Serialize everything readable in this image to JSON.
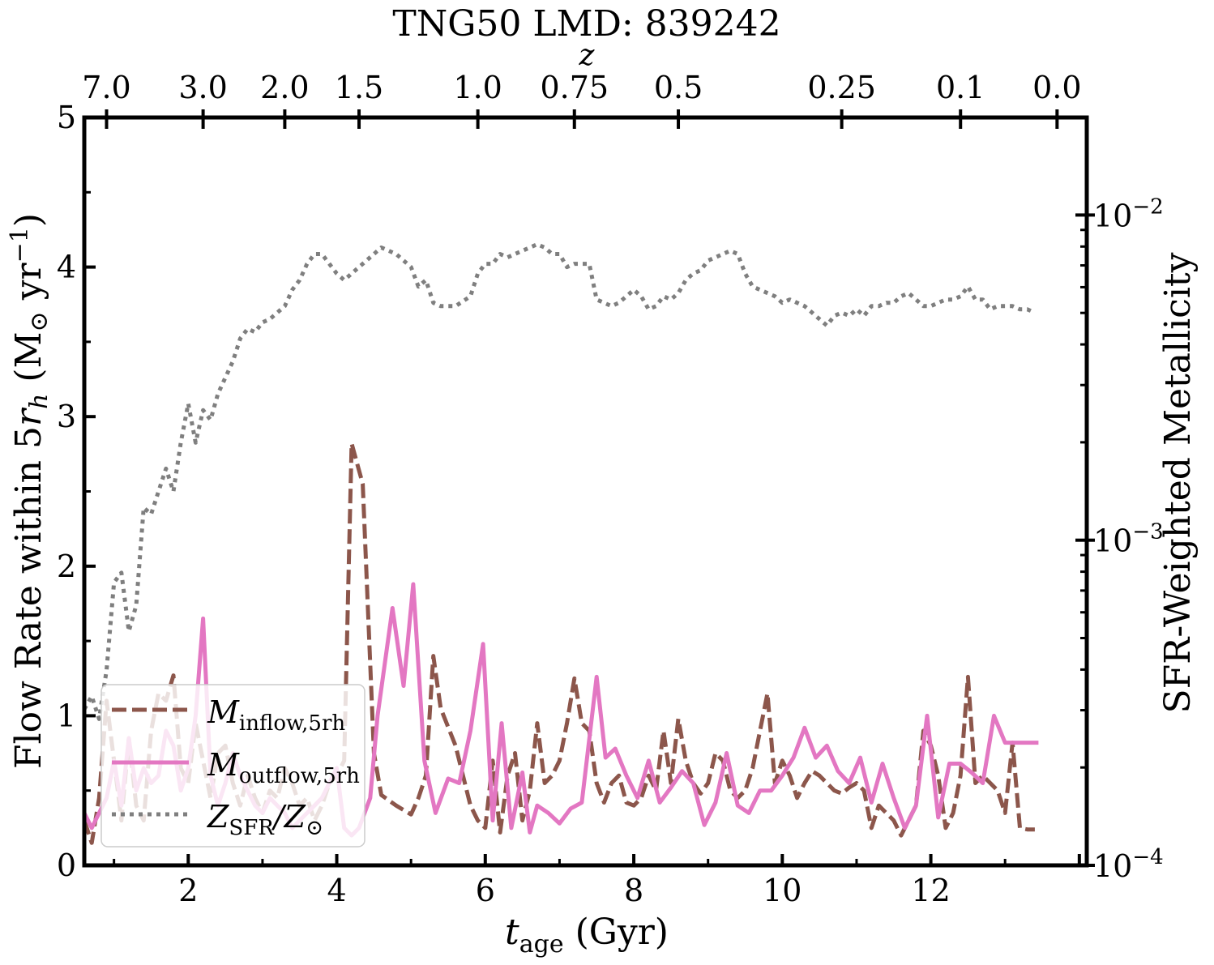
{
  "chart_data": {
    "type": "line",
    "title": "TNG50 LMD: 839242",
    "xlabel": "t_age (Gyr)",
    "xlabel_main": "t",
    "xlabel_sub": "age",
    "xlabel_unit": " (Gyr)",
    "ylabel": "Flow Rate within 5r_h (M☉ yr⁻¹)",
    "ylabel_parts": {
      "pre": "Flow Rate within 5",
      "r": "r",
      "h": "h",
      "unit": " (M",
      "sun": "⊙",
      "yr": " yr",
      "exp": "−1",
      "close": ")"
    },
    "y2label": "SFR-Weighted Metallicity",
    "top_xlabel": "z",
    "xlim": [
      0.6,
      14.1
    ],
    "ylim": [
      0,
      5
    ],
    "y2lim_log10": [
      -4,
      -1.7
    ],
    "xticks": [
      2,
      4,
      6,
      8,
      10,
      12
    ],
    "xtick_labels": [
      "2",
      "4",
      "6",
      "8",
      "10",
      "12"
    ],
    "yticks": [
      0,
      1,
      2,
      3,
      4,
      5
    ],
    "ytick_labels": [
      "0",
      "1",
      "2",
      "3",
      "4",
      "5"
    ],
    "y2ticks": [
      {
        "exp": -4,
        "base": "10",
        "power": "−4"
      },
      {
        "exp": -3,
        "base": "10",
        "power": "−3"
      },
      {
        "exp": -2,
        "base": "10",
        "power": "−2"
      }
    ],
    "top_ticks": [
      {
        "t": 0.9,
        "label": "7.0"
      },
      {
        "t": 2.2,
        "label": "3.0"
      },
      {
        "t": 3.3,
        "label": "2.0"
      },
      {
        "t": 4.3,
        "label": "1.5"
      },
      {
        "t": 5.9,
        "label": "1.0"
      },
      {
        "t": 7.2,
        "label": "0.75"
      },
      {
        "t": 8.6,
        "label": "0.5"
      },
      {
        "t": 10.8,
        "label": "0.25"
      },
      {
        "t": 12.4,
        "label": "0.1"
      },
      {
        "t": 13.7,
        "label": "0.0"
      }
    ],
    "legend": {
      "position": "lower-left",
      "entries": [
        {
          "main": "M",
          "sub": "inflow,5rh"
        },
        {
          "main": "M",
          "sub": "outflow,5rh"
        },
        {
          "main": "Z",
          "sub": "SFR",
          "slash": "/Z",
          "sub2": "⊙"
        }
      ]
    },
    "series": [
      {
        "name": "M_inflow,5rh",
        "color": "#8c564b",
        "style": "dashed",
        "axis": "left",
        "x": [
          0.6,
          0.7,
          0.8,
          0.9,
          1.0,
          1.1,
          1.2,
          1.3,
          1.4,
          1.5,
          1.6,
          1.7,
          1.8,
          1.9,
          2.0,
          2.1,
          2.2,
          2.3,
          2.4,
          2.5,
          2.6,
          2.7,
          2.8,
          2.9,
          3.0,
          3.1,
          3.2,
          3.3,
          3.4,
          3.5,
          3.6,
          3.7,
          3.8,
          3.9,
          4.0,
          4.1,
          4.2,
          4.35,
          4.5,
          4.6,
          4.8,
          5.0,
          5.1,
          5.2,
          5.3,
          5.4,
          5.6,
          5.8,
          5.9,
          6.0,
          6.1,
          6.2,
          6.3,
          6.4,
          6.5,
          6.6,
          6.7,
          6.8,
          6.9,
          7.0,
          7.1,
          7.2,
          7.3,
          7.4,
          7.5,
          7.6,
          7.7,
          7.8,
          7.9,
          8.0,
          8.1,
          8.2,
          8.3,
          8.4,
          8.5,
          8.6,
          8.7,
          8.8,
          8.9,
          9.0,
          9.1,
          9.2,
          9.3,
          9.4,
          9.5,
          9.6,
          9.7,
          9.8,
          9.9,
          10.0,
          10.1,
          10.2,
          10.3,
          10.4,
          10.5,
          10.6,
          10.7,
          10.8,
          10.9,
          11.0,
          11.1,
          11.2,
          11.3,
          11.4,
          11.5,
          11.6,
          11.7,
          11.8,
          11.9,
          12.0,
          12.1,
          12.2,
          12.3,
          12.4,
          12.5,
          12.6,
          12.7,
          12.8,
          12.9,
          13.0,
          13.1,
          13.2,
          13.3,
          13.4
        ],
        "y": [
          0.3,
          0.15,
          0.45,
          1.1,
          0.7,
          0.3,
          0.85,
          0.4,
          0.3,
          0.9,
          1.15,
          1.1,
          1.27,
          0.65,
          0.55,
          0.95,
          0.7,
          0.45,
          0.75,
          0.8,
          0.55,
          0.4,
          0.6,
          0.45,
          0.35,
          0.5,
          0.45,
          0.65,
          0.55,
          0.4,
          0.45,
          0.3,
          0.4,
          0.55,
          0.6,
          0.7,
          2.82,
          2.55,
          0.75,
          0.47,
          0.4,
          0.34,
          0.45,
          0.6,
          1.4,
          1.05,
          0.8,
          0.4,
          0.3,
          0.25,
          0.7,
          0.22,
          0.6,
          0.75,
          0.3,
          0.5,
          0.95,
          0.55,
          0.6,
          0.7,
          0.95,
          1.25,
          0.95,
          0.9,
          0.55,
          0.42,
          0.55,
          0.6,
          0.42,
          0.4,
          0.45,
          0.6,
          0.5,
          0.9,
          0.55,
          0.98,
          0.7,
          0.55,
          0.48,
          0.55,
          0.75,
          0.7,
          0.5,
          0.45,
          0.5,
          0.65,
          0.9,
          1.15,
          0.55,
          0.7,
          0.6,
          0.45,
          0.55,
          0.63,
          0.6,
          0.55,
          0.5,
          0.48,
          0.52,
          0.55,
          0.5,
          0.25,
          0.4,
          0.35,
          0.3,
          0.2,
          0.3,
          0.4,
          0.9,
          0.8,
          0.6,
          0.25,
          0.35,
          0.6,
          1.26,
          0.55,
          0.6,
          0.55,
          0.5,
          0.35,
          0.82,
          0.25,
          0.24,
          0.24
        ]
      },
      {
        "name": "M_outflow,5rh",
        "color": "#e377c2",
        "style": "solid",
        "axis": "left",
        "x": [
          0.6,
          0.7,
          0.8,
          0.9,
          1.0,
          1.1,
          1.2,
          1.3,
          1.4,
          1.5,
          1.6,
          1.7,
          1.8,
          1.9,
          2.0,
          2.1,
          2.2,
          2.3,
          2.4,
          2.5,
          2.6,
          2.7,
          2.8,
          2.9,
          3.0,
          3.1,
          3.2,
          3.3,
          3.4,
          3.5,
          3.6,
          3.7,
          3.8,
          3.9,
          4.0,
          4.1,
          4.2,
          4.3,
          4.45,
          4.55,
          4.75,
          4.9,
          5.03,
          5.18,
          5.33,
          5.5,
          5.65,
          5.8,
          5.97,
          6.1,
          6.22,
          6.35,
          6.5,
          6.6,
          6.7,
          6.85,
          7.0,
          7.15,
          7.3,
          7.5,
          7.62,
          7.75,
          7.9,
          8.05,
          8.2,
          8.35,
          8.5,
          8.65,
          8.8,
          8.95,
          9.1,
          9.25,
          9.4,
          9.55,
          9.7,
          9.85,
          10.0,
          10.15,
          10.3,
          10.45,
          10.6,
          10.75,
          10.9,
          11.05,
          11.2,
          11.35,
          11.5,
          11.65,
          11.8,
          11.95,
          12.1,
          12.25,
          12.4,
          12.55,
          12.7,
          12.85,
          13.0,
          13.15,
          13.3,
          13.45
        ],
        "y": [
          0.35,
          0.25,
          0.35,
          0.45,
          0.7,
          0.4,
          0.85,
          0.5,
          0.65,
          0.55,
          0.6,
          0.9,
          0.8,
          0.5,
          0.65,
          1.0,
          1.65,
          0.6,
          0.4,
          0.55,
          0.75,
          0.6,
          0.5,
          0.4,
          0.35,
          0.45,
          0.4,
          0.35,
          0.25,
          0.3,
          0.35,
          0.4,
          0.45,
          0.55,
          0.65,
          0.25,
          0.2,
          0.25,
          0.45,
          1.0,
          1.72,
          1.2,
          1.88,
          0.7,
          0.35,
          0.58,
          0.55,
          0.9,
          1.48,
          0.3,
          0.95,
          0.25,
          0.62,
          0.22,
          0.4,
          0.35,
          0.28,
          0.38,
          0.42,
          1.26,
          0.72,
          0.78,
          0.6,
          0.45,
          0.7,
          0.42,
          0.52,
          0.63,
          0.55,
          0.27,
          0.42,
          0.75,
          0.4,
          0.35,
          0.5,
          0.5,
          0.6,
          0.72,
          0.92,
          0.72,
          0.8,
          0.63,
          0.55,
          0.72,
          0.42,
          0.68,
          0.45,
          0.25,
          0.4,
          1.0,
          0.32,
          0.68,
          0.68,
          0.62,
          0.55,
          1.0,
          0.82,
          0.82,
          0.82,
          0.82
        ]
      },
      {
        "name": "Z_SFR/Z_sun",
        "color": "#7f7f7f",
        "style": "dotted",
        "axis": "right",
        "x": [
          0.6,
          0.7,
          0.8,
          0.9,
          1.0,
          1.1,
          1.2,
          1.3,
          1.4,
          1.5,
          1.6,
          1.7,
          1.8,
          1.9,
          2.0,
          2.1,
          2.2,
          2.3,
          2.4,
          2.5,
          2.6,
          2.7,
          2.8,
          2.9,
          3.0,
          3.1,
          3.2,
          3.3,
          3.4,
          3.5,
          3.6,
          3.7,
          3.8,
          3.9,
          4.0,
          4.1,
          4.2,
          4.35,
          4.5,
          4.6,
          4.8,
          5.0,
          5.1,
          5.2,
          5.3,
          5.4,
          5.6,
          5.8,
          5.9,
          6.0,
          6.1,
          6.2,
          6.3,
          6.4,
          6.5,
          6.6,
          6.7,
          6.8,
          6.9,
          7.0,
          7.1,
          7.2,
          7.3,
          7.4,
          7.5,
          7.6,
          7.7,
          7.8,
          7.9,
          8.0,
          8.1,
          8.2,
          8.3,
          8.4,
          8.5,
          8.6,
          8.7,
          8.8,
          8.9,
          9.0,
          9.1,
          9.2,
          9.3,
          9.4,
          9.5,
          9.6,
          9.7,
          9.8,
          9.9,
          10.0,
          10.1,
          10.2,
          10.3,
          10.4,
          10.5,
          10.6,
          10.7,
          10.8,
          10.9,
          11.0,
          11.1,
          11.2,
          11.3,
          11.4,
          11.5,
          11.6,
          11.7,
          11.8,
          11.9,
          12.0,
          12.1,
          12.2,
          12.3,
          12.4,
          12.5,
          12.6,
          12.7,
          12.8,
          12.9,
          13.0,
          13.1,
          13.2,
          13.3,
          13.4
        ],
        "y_log10": [
          -3.52,
          -3.48,
          -3.55,
          -3.4,
          -3.13,
          -3.1,
          -3.28,
          -3.2,
          -2.9,
          -2.92,
          -2.85,
          -2.78,
          -2.85,
          -2.7,
          -2.58,
          -2.7,
          -2.6,
          -2.63,
          -2.55,
          -2.5,
          -2.45,
          -2.38,
          -2.35,
          -2.36,
          -2.33,
          -2.32,
          -2.3,
          -2.28,
          -2.23,
          -2.2,
          -2.15,
          -2.12,
          -2.12,
          -2.15,
          -2.18,
          -2.2,
          -2.18,
          -2.15,
          -2.12,
          -2.1,
          -2.12,
          -2.16,
          -2.22,
          -2.2,
          -2.27,
          -2.28,
          -2.28,
          -2.25,
          -2.18,
          -2.15,
          -2.15,
          -2.12,
          -2.13,
          -2.12,
          -2.11,
          -2.1,
          -2.09,
          -2.1,
          -2.12,
          -2.12,
          -2.16,
          -2.15,
          -2.15,
          -2.15,
          -2.26,
          -2.27,
          -2.28,
          -2.27,
          -2.25,
          -2.23,
          -2.25,
          -2.29,
          -2.28,
          -2.25,
          -2.26,
          -2.24,
          -2.2,
          -2.18,
          -2.17,
          -2.14,
          -2.13,
          -2.12,
          -2.11,
          -2.12,
          -2.18,
          -2.22,
          -2.23,
          -2.24,
          -2.25,
          -2.27,
          -2.26,
          -2.27,
          -2.28,
          -2.3,
          -2.32,
          -2.34,
          -2.31,
          -2.3,
          -2.31,
          -2.29,
          -2.31,
          -2.28,
          -2.28,
          -2.27,
          -2.27,
          -2.25,
          -2.24,
          -2.26,
          -2.28,
          -2.28,
          -2.27,
          -2.26,
          -2.26,
          -2.25,
          -2.22,
          -2.26,
          -2.26,
          -2.29,
          -2.28,
          -2.28,
          -2.28,
          -2.29,
          -2.29,
          -2.3
        ]
      }
    ]
  }
}
